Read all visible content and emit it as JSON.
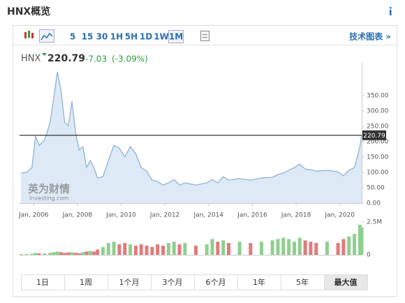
{
  "header": {
    "title": "HNX概览"
  },
  "toolbar": {
    "intervals": [
      "5",
      "15",
      "30",
      "1H",
      "5H",
      "1D",
      "1W",
      "1M"
    ],
    "selected_interval": 7,
    "link": "技术图表 »"
  },
  "quote": {
    "symbol": "HNX",
    "change": "-7.03",
    "change_pct": "(-3.09%)"
  },
  "watermark": [
    "英为财情",
    "Investing.com"
  ],
  "tabs": {
    "items": [
      "1日",
      "1周",
      "1个月",
      "3个月",
      "6个月",
      "1年",
      "5年",
      "最大值"
    ],
    "selected": 7
  },
  "chart_data": [
    {
      "type": "area",
      "line_color": "#8fb3d6",
      "fill_color": "#dde9f4",
      "last_line_color": "#333333",
      "x": [
        "2005-06",
        "2005-09",
        "2005-12",
        "2006-02",
        "2006-04",
        "2006-07",
        "2006-10",
        "2006-12",
        "2007-02",
        "2007-04",
        "2007-06",
        "2007-08",
        "2007-10",
        "2007-12",
        "2008-02",
        "2008-04",
        "2008-06",
        "2008-08",
        "2008-10",
        "2008-12",
        "2009-03",
        "2009-06",
        "2009-09",
        "2009-12",
        "2010-03",
        "2010-06",
        "2010-09",
        "2010-12",
        "2011-03",
        "2011-06",
        "2011-09",
        "2011-12",
        "2012-03",
        "2012-06",
        "2012-09",
        "2012-12",
        "2013-06",
        "2013-12",
        "2014-03",
        "2014-06",
        "2014-09",
        "2014-12",
        "2015-06",
        "2015-12",
        "2016-06",
        "2016-12",
        "2017-03",
        "2017-06",
        "2017-09",
        "2017-12",
        "2018-03",
        "2018-06",
        "2018-09",
        "2018-12",
        "2019-06",
        "2019-12",
        "2020-03",
        "2020-06",
        "2020-09",
        "2020-12",
        "2021-01"
      ],
      "values": [
        98,
        100,
        115,
        218,
        188,
        205,
        263,
        343,
        427,
        366,
        263,
        252,
        331,
        229,
        173,
        184,
        116,
        139,
        116,
        82,
        86,
        139,
        188,
        179,
        150,
        184,
        161,
        116,
        104,
        75,
        70,
        59,
        66,
        77,
        59,
        66,
        59,
        66,
        77,
        66,
        86,
        75,
        80,
        75,
        82,
        84,
        93,
        98,
        107,
        116,
        127,
        111,
        109,
        104,
        107,
        102,
        89,
        107,
        116,
        184,
        220.79
      ],
      "xlim": [
        "2005-06",
        "2021-01"
      ],
      "xticks": [
        {
          "value": "2006-01",
          "label": "Jan, 2006"
        },
        {
          "value": "2008-01",
          "label": "Jan, 2008"
        },
        {
          "value": "2010-01",
          "label": "Jan, 2010"
        },
        {
          "value": "2012-01",
          "label": "Jan, 2012"
        },
        {
          "value": "2014-01",
          "label": "Jan, 2014"
        },
        {
          "value": "2016-01",
          "label": "Jan, 2016"
        },
        {
          "value": "2018-01",
          "label": "Jan, 2018"
        },
        {
          "value": "2020-01",
          "label": "Jan, 2020"
        }
      ],
      "ylim": [
        0,
        445
      ],
      "yticks": [
        {
          "value": 0,
          "label": "0.00"
        },
        {
          "value": 50,
          "label": "50.00"
        },
        {
          "value": 100,
          "label": "100.00"
        },
        {
          "value": 150,
          "label": "150.00"
        },
        {
          "value": 200,
          "label": "200.00"
        },
        {
          "value": 250,
          "label": "250.00"
        },
        {
          "value": 300,
          "label": "300.00"
        },
        {
          "value": 350,
          "label": "350.00"
        }
      ]
    },
    {
      "type": "bar",
      "up_color": "#8fcf8f",
      "down_color": "#e07b7b",
      "values": [
        50000,
        60000,
        80000,
        150000,
        120000,
        100000,
        150000,
        200000,
        250000,
        200000,
        150000,
        180000,
        200000,
        150000,
        120000,
        200000,
        250000,
        300000,
        250000,
        400000,
        600000,
        900000,
        1000000,
        800000,
        900000,
        800000,
        700000,
        800000,
        700000,
        600000,
        800000,
        700000,
        900000,
        1000000,
        800000,
        900000,
        700000,
        800000,
        1200000,
        1000000,
        1100000,
        900000,
        1000000,
        900000,
        1000000,
        1100000,
        1200000,
        1300000,
        1200000,
        1000000,
        1300000,
        1100000,
        1000000,
        900000,
        1000000,
        900000,
        1200000,
        1400000,
        1600000,
        2300000,
        2100000
      ],
      "ylim": [
        0,
        2500000
      ],
      "yticks": [
        0,
        {
          "value": 2500000,
          "label": "2.5M"
        }
      ]
    }
  ]
}
